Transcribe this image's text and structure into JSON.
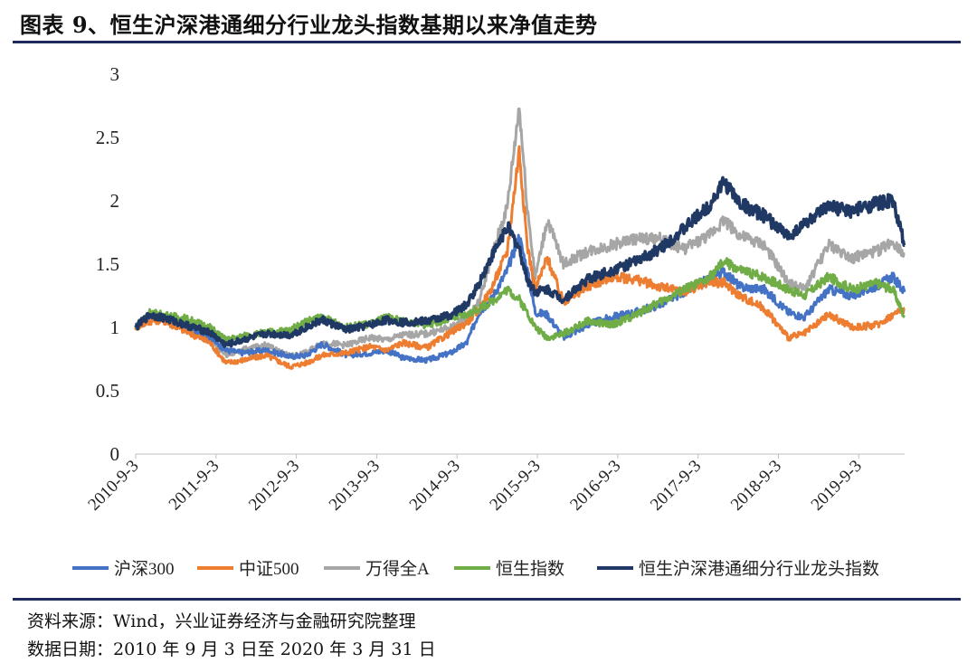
{
  "title": "图表 9、恒生沪深港通细分行业龙头指数基期以来净值走势",
  "footer": {
    "source": "资料来源：Wind，兴业证券经济与金融研究院整理",
    "date_range": "数据日期：2010 年 9 月 3 日至 2020 年 3 月 31 日"
  },
  "chart_data": {
    "type": "line",
    "title": "",
    "xlabel": "",
    "ylabel": "",
    "ylim": [
      0,
      3
    ],
    "yticks": [
      "0",
      "0.5",
      "1",
      "1.5",
      "2",
      "2.5",
      "3"
    ],
    "xlim": [
      2010.676,
      2020.247
    ],
    "x_tick_positions": [
      2010.676,
      2011.676,
      2012.676,
      2013.676,
      2014.676,
      2015.676,
      2016.676,
      2017.676,
      2018.676,
      2019.676
    ],
    "x_tick_labels": [
      "2010-9-3",
      "2011-9-3",
      "2012-9-3",
      "2013-9-3",
      "2014-9-3",
      "2015-9-3",
      "2016-9-3",
      "2017-9-3",
      "2018-9-3",
      "2019-9-3"
    ],
    "x": [
      2010.676,
      2010.85,
      2011.0,
      2011.3,
      2011.6,
      2011.8,
      2012.0,
      2012.3,
      2012.6,
      2012.8,
      2013.0,
      2013.3,
      2013.6,
      2013.8,
      2014.0,
      2014.3,
      2014.6,
      2014.8,
      2014.95,
      2015.1,
      2015.3,
      2015.45,
      2015.55,
      2015.65,
      2015.8,
      2016.0,
      2016.3,
      2016.6,
      2016.9,
      2017.2,
      2017.5,
      2017.8,
      2018.0,
      2018.2,
      2018.5,
      2018.8,
      2019.0,
      2019.3,
      2019.6,
      2019.9,
      2020.1,
      2020.247
    ],
    "series": [
      {
        "name": "沪深300",
        "color": "#4472c4",
        "values": [
          1.0,
          1.1,
          1.07,
          1.0,
          0.92,
          0.82,
          0.8,
          0.82,
          0.77,
          0.78,
          0.87,
          0.78,
          0.8,
          0.82,
          0.76,
          0.74,
          0.8,
          0.88,
          1.12,
          1.22,
          1.45,
          1.72,
          1.45,
          1.12,
          1.1,
          0.92,
          1.02,
          1.08,
          1.12,
          1.18,
          1.28,
          1.38,
          1.44,
          1.32,
          1.3,
          1.12,
          1.08,
          1.3,
          1.25,
          1.33,
          1.4,
          1.28
        ]
      },
      {
        "name": "中证500",
        "color": "#ed7d31",
        "values": [
          1.0,
          1.05,
          1.06,
          0.97,
          0.88,
          0.72,
          0.74,
          0.78,
          0.69,
          0.72,
          0.78,
          0.8,
          0.85,
          0.82,
          0.88,
          0.84,
          0.96,
          1.04,
          1.14,
          1.3,
          1.6,
          2.4,
          1.65,
          1.3,
          1.55,
          1.2,
          1.32,
          1.4,
          1.38,
          1.32,
          1.28,
          1.36,
          1.35,
          1.25,
          1.15,
          0.92,
          0.95,
          1.1,
          1.0,
          1.02,
          1.1,
          1.15
        ]
      },
      {
        "name": "万得全A",
        "color": "#a6a6a6",
        "values": [
          1.0,
          1.08,
          1.08,
          1.0,
          0.92,
          0.78,
          0.82,
          0.86,
          0.77,
          0.8,
          0.88,
          0.86,
          0.92,
          0.9,
          0.94,
          0.95,
          1.0,
          1.08,
          1.2,
          1.55,
          1.95,
          2.75,
          1.95,
          1.4,
          1.85,
          1.5,
          1.6,
          1.65,
          1.7,
          1.7,
          1.62,
          1.72,
          1.85,
          1.72,
          1.65,
          1.35,
          1.3,
          1.65,
          1.55,
          1.6,
          1.68,
          1.58
        ]
      },
      {
        "name": "恒生指数",
        "color": "#70ad47",
        "values": [
          1.0,
          1.12,
          1.1,
          1.07,
          1.0,
          0.9,
          0.93,
          0.96,
          0.98,
          1.05,
          1.08,
          1.0,
          1.03,
          1.08,
          1.05,
          1.02,
          1.07,
          1.1,
          1.15,
          1.2,
          1.3,
          1.22,
          1.12,
          1.0,
          0.92,
          0.95,
          1.05,
          1.02,
          1.1,
          1.2,
          1.3,
          1.38,
          1.52,
          1.45,
          1.4,
          1.3,
          1.25,
          1.4,
          1.3,
          1.35,
          1.3,
          1.08
        ]
      },
      {
        "name": "恒生沪深港通细分行业龙头指数",
        "color": "#1f3864",
        "values": [
          1.0,
          1.1,
          1.08,
          1.02,
          0.96,
          0.86,
          0.9,
          0.95,
          0.94,
          1.0,
          1.06,
          0.98,
          1.02,
          1.06,
          1.04,
          1.05,
          1.1,
          1.18,
          1.35,
          1.55,
          1.8,
          1.62,
          1.38,
          1.28,
          1.3,
          1.22,
          1.38,
          1.45,
          1.52,
          1.62,
          1.78,
          1.95,
          2.15,
          1.98,
          1.88,
          1.72,
          1.82,
          1.95,
          1.92,
          1.98,
          2.0,
          1.65
        ]
      }
    ]
  }
}
